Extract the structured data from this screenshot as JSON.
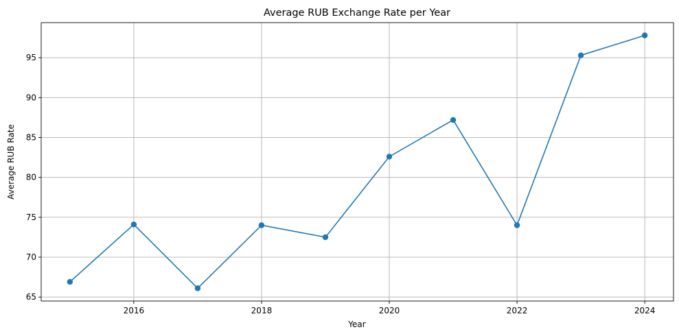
{
  "chart_data": {
    "type": "line",
    "title": "Average RUB Exchange Rate per Year",
    "xlabel": "Year",
    "ylabel": "Average RUB Rate",
    "x": [
      2015,
      2016,
      2017,
      2018,
      2019,
      2020,
      2021,
      2022,
      2023,
      2024
    ],
    "series": [
      {
        "values": [
          66.9,
          74.1,
          66.1,
          74.0,
          72.5,
          82.6,
          87.2,
          74.0,
          95.3,
          97.8
        ],
        "color": "#1f77b4",
        "marker": "circle"
      }
    ],
    "xlim": [
      2014.55,
      2024.45
    ],
    "ylim": [
      64.5,
      99.4
    ],
    "xticks": [
      2016,
      2018,
      2020,
      2022,
      2024
    ],
    "yticks": [
      65,
      70,
      75,
      80,
      85,
      90,
      95
    ],
    "grid": true,
    "grid_color": "#b0b0b0"
  }
}
